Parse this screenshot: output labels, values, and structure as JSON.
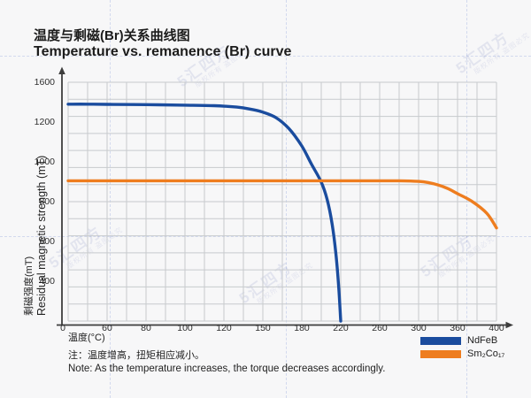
{
  "chart_data": {
    "type": "line",
    "title_zh": "温度与剩磁(Br)关系曲线图",
    "title_en": "Temperature vs. remanence (Br) curve",
    "xlabel": "温度(°C)",
    "ylabel_zh": "剩磁强度(mT)",
    "ylabel_en": "Residual magnetic strength (mT)",
    "x_ticks": [
      0,
      60,
      80,
      100,
      120,
      150,
      180,
      220,
      260,
      300,
      360,
      400
    ],
    "y_ticks": [
      0,
      400,
      600,
      800,
      1000,
      1200,
      1600
    ],
    "xlim": [
      0,
      400
    ],
    "ylim": [
      0,
      1600
    ],
    "grid": true,
    "legend_position": "bottom-right",
    "series": [
      {
        "name": "NdFeB",
        "color": "#1a4c9e",
        "points": [
          [
            0,
            1380
          ],
          [
            30,
            1380
          ],
          [
            60,
            1378
          ],
          [
            80,
            1375
          ],
          [
            100,
            1370
          ],
          [
            115,
            1364
          ],
          [
            130,
            1350
          ],
          [
            140,
            1331
          ],
          [
            150,
            1300
          ],
          [
            160,
            1245
          ],
          [
            170,
            1168
          ],
          [
            180,
            1080
          ],
          [
            190,
            988
          ],
          [
            200,
            898
          ],
          [
            206,
            812
          ],
          [
            211,
            692
          ],
          [
            215,
            540
          ],
          [
            218,
            330
          ],
          [
            220,
            0
          ]
        ]
      },
      {
        "name": "Sm₂Co₁₇",
        "color": "#ee7d1f",
        "points": [
          [
            0,
            905
          ],
          [
            50,
            905
          ],
          [
            100,
            905
          ],
          [
            150,
            905
          ],
          [
            200,
            905
          ],
          [
            250,
            905
          ],
          [
            280,
            905
          ],
          [
            300,
            902
          ],
          [
            315,
            896
          ],
          [
            330,
            884
          ],
          [
            345,
            866
          ],
          [
            360,
            840
          ],
          [
            375,
            801
          ],
          [
            390,
            742
          ],
          [
            400,
            668
          ]
        ]
      }
    ]
  },
  "note": {
    "line1": "注：温度增高，扭矩相应减小。",
    "line2": "Note: As the temperature increases, the torque decreases accordingly."
  },
  "watermark": {
    "brand": "5汇四方",
    "sub": "版权所有 盗图必究"
  }
}
